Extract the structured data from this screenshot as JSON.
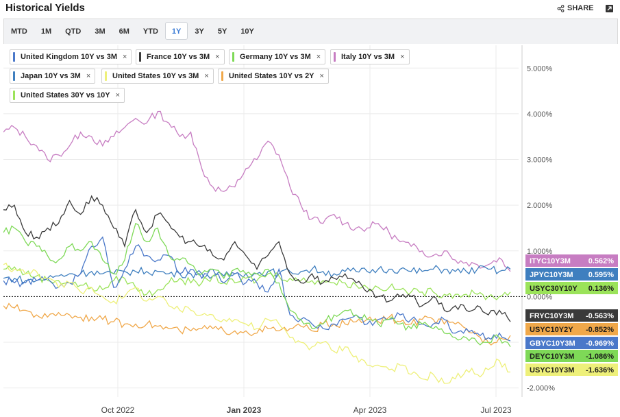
{
  "header": {
    "title": "Historical Yields",
    "share_label": "SHARE"
  },
  "tabs": [
    {
      "label": "MTD"
    },
    {
      "label": "1M"
    },
    {
      "label": "QTD"
    },
    {
      "label": "3M"
    },
    {
      "label": "6M"
    },
    {
      "label": "YTD"
    },
    {
      "label": "1Y",
      "active": true
    },
    {
      "label": "3Y"
    },
    {
      "label": "5Y"
    },
    {
      "label": "10Y"
    }
  ],
  "legend_chips": [
    {
      "label": "United Kingdom 10Y vs 3M",
      "color": "#4a78c9"
    },
    {
      "label": "France 10Y vs 3M",
      "color": "#3a3a3a"
    },
    {
      "label": "Germany 10Y vs 3M",
      "color": "#7ed957"
    },
    {
      "label": "Italy 10Y vs 3M",
      "color": "#c77dc2"
    },
    {
      "label": "Japan 10Y vs 3M",
      "color": "#3f7fbf"
    },
    {
      "label": "United States 10Y vs 3M",
      "color": "#eef07a"
    },
    {
      "label": "United States 10Y vs 2Y",
      "color": "#f0a84a"
    },
    {
      "label": "United States 30Y vs 10Y",
      "color": "#9be35a"
    }
  ],
  "chart_data": {
    "type": "line",
    "x_ticks": [
      "Oct 2022",
      "Jan 2023",
      "Apr 2023",
      "Jul 2023"
    ],
    "y_ticks": [
      "5.000%",
      "4.000%",
      "3.000%",
      "2.000%",
      "1.000%",
      "0.000%",
      "-2.000%"
    ],
    "ylim": [
      -2.2,
      5.5
    ],
    "grid": true,
    "zero_line": "dotted",
    "series": [
      {
        "name": "Italy 10Y vs 3M",
        "code": "ITYC10Y3M",
        "color": "#c77dc2",
        "last": "0.562%",
        "values": [
          3.6,
          3.7,
          3.5,
          3.3,
          3.0,
          3.1,
          3.3,
          3.6,
          3.5,
          3.3,
          3.5,
          3.7,
          3.9,
          3.8,
          4.05,
          3.8,
          3.5,
          3.6,
          2.8,
          2.4,
          2.3,
          2.4,
          2.8,
          3.0,
          3.4,
          3.1,
          2.4,
          2.0,
          1.7,
          1.6,
          1.8,
          1.6,
          1.5,
          1.5,
          1.6,
          1.4,
          1.2,
          1.1,
          1.0,
          0.9,
          1.0,
          0.8,
          0.75,
          0.7,
          0.7,
          0.85,
          0.55
        ]
      },
      {
        "name": "Japan 10Y vs 3M",
        "code": "JPYC10Y3M",
        "color": "#3f7fbf",
        "last": "0.595%",
        "values": [
          0.4,
          0.4,
          0.35,
          0.35,
          0.4,
          0.45,
          0.5,
          0.5,
          0.55,
          0.5,
          0.5,
          0.55,
          0.55,
          0.55,
          0.55,
          0.5,
          0.5,
          0.5,
          0.5,
          0.45,
          0.45,
          0.5,
          0.5,
          0.5,
          0.55,
          0.5,
          0.55,
          0.55,
          0.6,
          0.55,
          0.5,
          0.55,
          0.55,
          0.55,
          0.6,
          0.6,
          0.6,
          0.55,
          0.55,
          0.6,
          0.6,
          0.55,
          0.55,
          0.6,
          0.6,
          0.55,
          0.6
        ]
      },
      {
        "name": "United States 30Y vs 10Y",
        "code": "USYC30Y10Y",
        "color": "#9be35a",
        "last": "0.136%",
        "values": [
          0.6,
          0.65,
          0.5,
          0.45,
          0.35,
          0.35,
          0.3,
          0.25,
          0.2,
          0.15,
          0.35,
          0.4,
          0.2,
          0.05,
          0.15,
          0.3,
          0.4,
          0.3,
          0.3,
          0.45,
          0.3,
          0.3,
          0.4,
          0.35,
          0.5,
          0.45,
          0.4,
          0.35,
          0.35,
          0.35,
          0.3,
          0.3,
          0.25,
          0.2,
          0.2,
          0.2,
          0.15,
          0.1,
          0.1,
          0.1,
          0.05,
          0.05,
          0.05,
          0.05,
          0.0,
          0.0,
          0.1
        ]
      },
      {
        "name": "France 10Y vs 3M",
        "code": "FRYC10Y3M",
        "color": "#3a3a3a",
        "last": "-0.563%",
        "values": [
          1.9,
          2.0,
          1.4,
          1.3,
          1.5,
          1.6,
          2.1,
          1.8,
          2.2,
          2.0,
          1.5,
          1.1,
          1.9,
          1.4,
          1.8,
          1.6,
          1.3,
          1.2,
          1.1,
          0.9,
          0.8,
          1.2,
          0.9,
          0.6,
          0.9,
          1.2,
          0.5,
          0.3,
          0.5,
          0.3,
          0.4,
          0.5,
          0.3,
          0.1,
          0.0,
          -0.1,
          0.0,
          0.0,
          -0.2,
          0.0,
          -0.3,
          -0.2,
          -0.3,
          -0.2,
          -0.4,
          -0.3,
          -0.55
        ]
      },
      {
        "name": "United States 10Y vs 2Y",
        "code": "USYC10Y2Y",
        "color": "#f0a84a",
        "last": "-0.852%",
        "values": [
          -0.2,
          -0.25,
          -0.3,
          -0.4,
          -0.45,
          -0.35,
          -0.4,
          -0.45,
          -0.45,
          -0.5,
          -0.55,
          -0.6,
          -0.6,
          -0.6,
          -0.65,
          -0.7,
          -0.75,
          -0.75,
          -0.7,
          -0.7,
          -0.75,
          -0.75,
          -0.75,
          -0.8,
          -0.7,
          -0.75,
          -0.7,
          -0.65,
          -0.75,
          -0.6,
          -0.6,
          -0.6,
          -0.55,
          -0.5,
          -0.55,
          -0.45,
          -0.55,
          -0.6,
          -0.5,
          -0.5,
          -0.6,
          -0.6,
          -0.7,
          -0.85,
          -1.0,
          -0.9,
          -0.85
        ]
      },
      {
        "name": "United Kingdom 10Y vs 3M",
        "code": "GBYC10Y3M",
        "color": "#4a78c9",
        "last": "-0.969%",
        "values": [
          0.35,
          0.3,
          0.3,
          0.35,
          0.4,
          0.2,
          0.3,
          0.5,
          1.1,
          1.3,
          0.2,
          0.6,
          1.1,
          0.9,
          0.8,
          0.9,
          0.5,
          0.6,
          0.4,
          0.6,
          0.3,
          0.5,
          0.3,
          0.3,
          0.1,
          0.6,
          -0.4,
          -0.5,
          -0.6,
          -0.7,
          -0.6,
          -0.5,
          -0.4,
          -0.6,
          -0.5,
          -0.5,
          -0.4,
          -0.5,
          -0.6,
          -0.6,
          -0.5,
          -0.8,
          -0.7,
          -0.8,
          -0.9,
          -0.8,
          -0.97
        ]
      },
      {
        "name": "Germany 10Y vs 3M",
        "code": "DEYC10Y3M",
        "color": "#7ed957",
        "last": "-1.086%",
        "values": [
          1.4,
          1.5,
          1.2,
          1.1,
          0.9,
          0.8,
          1.1,
          1.0,
          1.2,
          0.8,
          0.5,
          0.8,
          1.6,
          1.2,
          1.5,
          0.9,
          0.8,
          0.7,
          0.5,
          0.6,
          0.4,
          0.6,
          0.5,
          0.5,
          0.6,
          0.3,
          -0.3,
          -0.5,
          -0.7,
          -0.6,
          -0.4,
          -0.3,
          -0.4,
          -0.5,
          -0.6,
          -0.5,
          -0.6,
          -0.7,
          -0.6,
          -0.7,
          -0.8,
          -0.9,
          -0.9,
          -1.0,
          -1.0,
          -0.9,
          -1.1
        ]
      },
      {
        "name": "United States 10Y vs 3M",
        "code": "USYC10Y3M",
        "color": "#eef07a",
        "last": "-1.636%",
        "values": [
          0.7,
          0.6,
          0.5,
          0.55,
          0.4,
          0.2,
          0.3,
          0.1,
          0.2,
          0.0,
          -0.1,
          0.0,
          0.2,
          -0.1,
          0.0,
          -0.2,
          -0.3,
          -0.3,
          -0.4,
          -0.4,
          -0.5,
          -0.5,
          -0.6,
          -0.7,
          -0.5,
          -0.6,
          -0.9,
          -1.0,
          -1.1,
          -1.0,
          -1.2,
          -1.1,
          -1.3,
          -1.5,
          -1.5,
          -1.6,
          -1.5,
          -1.7,
          -1.8,
          -1.7,
          -1.9,
          -1.8,
          -1.6,
          -1.7,
          -1.6,
          -1.4,
          -1.65
        ]
      }
    ]
  }
}
